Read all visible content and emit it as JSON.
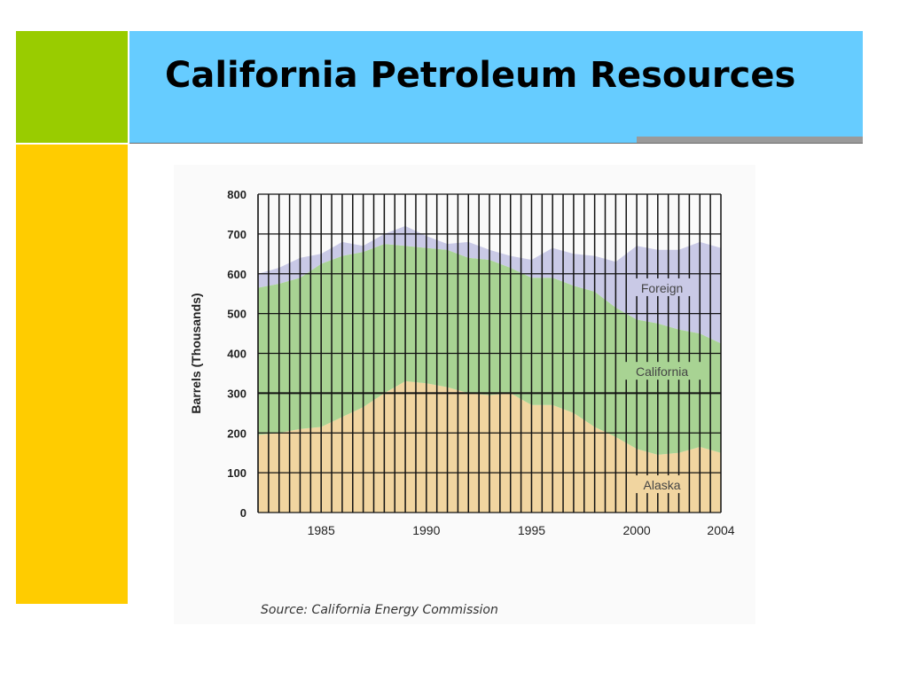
{
  "slide": {
    "title": "California Petroleum Resources",
    "source": "Source: California Energy Commission",
    "colors": {
      "green_block": "#99cc00",
      "yellow_block": "#ffcc00",
      "title_bar": "#66ccff"
    }
  },
  "chart_data": {
    "type": "area",
    "stacked": true,
    "ylabel": "Barrels (Thousands)",
    "xlabel": "",
    "ylim": [
      0,
      800
    ],
    "xlim": [
      1982,
      2004
    ],
    "yticks": [
      0,
      100,
      200,
      300,
      400,
      500,
      600,
      700,
      800
    ],
    "xticks": [
      "1985",
      "1990",
      "1995",
      "2000",
      "2004"
    ],
    "grid": true,
    "x": [
      1982,
      1983,
      1984,
      1985,
      1986,
      1987,
      1988,
      1989,
      1990,
      1991,
      1992,
      1993,
      1994,
      1995,
      1996,
      1997,
      1998,
      1999,
      2000,
      2001,
      2002,
      2003,
      2004
    ],
    "series": [
      {
        "name": "Alaska",
        "color": "#f1d5a0",
        "values": [
          195,
          200,
          210,
          215,
          240,
          265,
          300,
          330,
          325,
          315,
          300,
          295,
          300,
          270,
          270,
          250,
          215,
          190,
          160,
          145,
          150,
          165,
          150
        ]
      },
      {
        "name": "California",
        "color": "#a8d393",
        "values": [
          370,
          375,
          380,
          410,
          405,
          390,
          375,
          340,
          340,
          345,
          340,
          340,
          315,
          320,
          320,
          320,
          340,
          325,
          325,
          330,
          310,
          285,
          275
        ]
      },
      {
        "name": "Foreign",
        "color": "#c9c9e6",
        "values": [
          35,
          40,
          50,
          25,
          35,
          15,
          25,
          50,
          30,
          15,
          40,
          25,
          30,
          45,
          75,
          80,
          90,
          115,
          185,
          185,
          200,
          230,
          240
        ]
      }
    ]
  }
}
